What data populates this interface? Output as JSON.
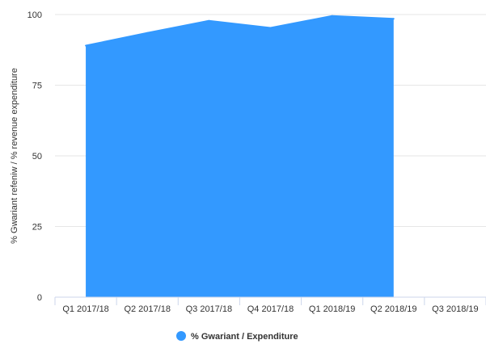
{
  "chart_data": {
    "type": "area",
    "categories": [
      "Q1 2017/18",
      "Q2 2017/18",
      "Q3 2017/18",
      "Q4 2017/18",
      "Q1 2018/19",
      "Q2 2018/19",
      "Q3 2018/19"
    ],
    "series": [
      {
        "name": "% Gwariant / Expenditure",
        "values": [
          89,
          93.5,
          97.8,
          95.3,
          99.5,
          98.5,
          null
        ],
        "color": "#3399ff"
      }
    ],
    "ylabel": "% Gwariant refeniw / % revenue expenditure",
    "xlabel": "",
    "ylim": [
      0,
      100
    ],
    "yticks": [
      0,
      25,
      50,
      75,
      100
    ],
    "grid": true,
    "legend_position": "bottom-center"
  },
  "colors": {
    "grid": "#e6e6e6",
    "axis": "#ccd6eb",
    "series": "#3399ff"
  }
}
